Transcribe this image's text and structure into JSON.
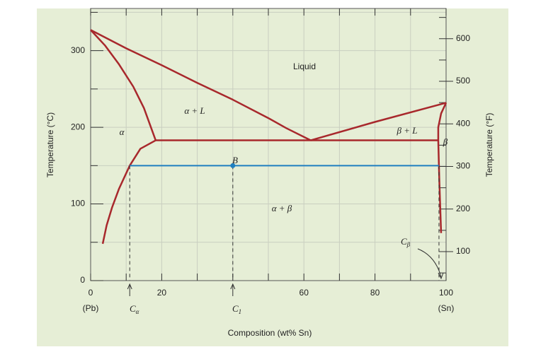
{
  "chart_data": {
    "type": "phase-diagram",
    "x_label": "Composition (wt% Sn)",
    "y_label": "Temperature (°C)",
    "y2_label": "Temperature (°F)",
    "xlim": [
      0,
      100
    ],
    "ylim": [
      0,
      355
    ],
    "y2lim": [
      32,
      671
    ],
    "xticks": [
      0,
      20,
      60,
      80,
      100
    ],
    "xgrid": [
      0,
      10,
      20,
      30,
      40,
      50,
      60,
      70,
      80,
      90,
      100
    ],
    "yticks": [
      0,
      100,
      200,
      300
    ],
    "yminor": [
      50,
      150,
      250,
      350
    ],
    "y2ticks": [
      100,
      200,
      300,
      400,
      500,
      600
    ],
    "y2minor": [
      50,
      150,
      250,
      350,
      450,
      550,
      650
    ],
    "x_end_labels": [
      "(Pb)",
      "(Sn)"
    ],
    "grid": true,
    "curve_color": "#a8282c",
    "curves": [
      {
        "x": [
          0,
          10,
          20,
          30,
          40,
          50,
          55,
          61.9
        ],
        "y": [
          327,
          303,
          281,
          258,
          236,
          212,
          199,
          183
        ]
      },
      {
        "x": [
          61.9,
          80,
          100
        ],
        "y": [
          183,
          207,
          232
        ]
      },
      {
        "x": [
          0,
          4,
          8,
          12,
          15,
          18.3
        ],
        "y": [
          327,
          307,
          282,
          253,
          225,
          183
        ]
      },
      {
        "x": [
          18.3,
          97.8
        ],
        "y": [
          183,
          183
        ]
      },
      {
        "x": [
          18.3,
          14,
          11,
          8,
          6,
          4.5,
          3.4
        ],
        "y": [
          183,
          172,
          150,
          120,
          95,
          72,
          48
        ]
      },
      {
        "x": [
          100,
          98.6,
          97.8,
          97.8,
          98.1,
          98.6
        ],
        "y": [
          232,
          218,
          200,
          183,
          130,
          62
        ]
      }
    ],
    "tie_line": {
      "color": "#1f7fc0",
      "x": [
        11,
        98
      ],
      "y": [
        150,
        150
      ]
    },
    "point": {
      "x": 40,
      "y": 150
    },
    "annotations": [
      {
        "text": "Liquid"
      },
      {
        "text": "α + L"
      },
      {
        "text": "α"
      },
      {
        "text": "β + L"
      },
      {
        "text": "β"
      },
      {
        "text": "B"
      },
      {
        "text": "α + β"
      },
      {
        "text": "C",
        "sub": "α"
      },
      {
        "text": "C",
        "sub": "1"
      },
      {
        "text": "C",
        "sub": "β"
      }
    ]
  }
}
